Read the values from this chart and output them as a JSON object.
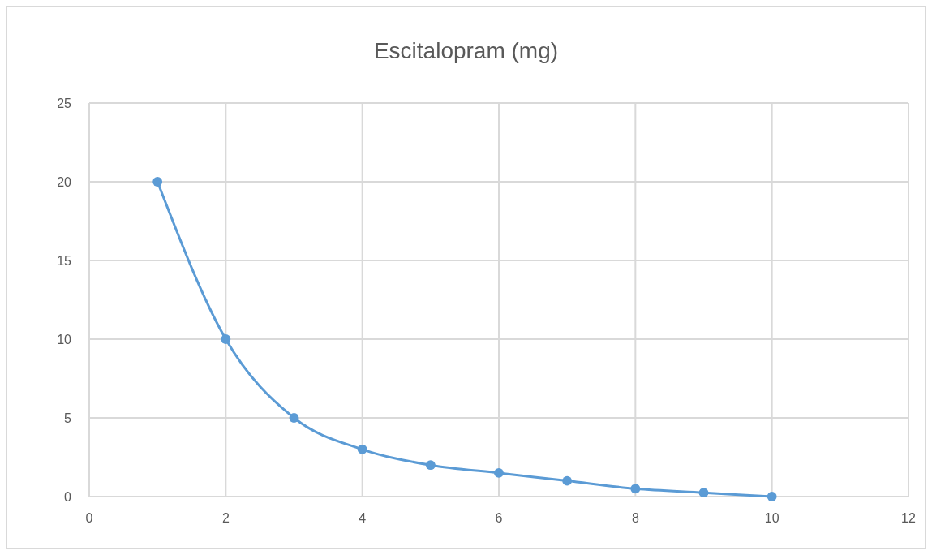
{
  "chart_data": {
    "type": "line",
    "title": "Escitalopram (mg)",
    "x": [
      1,
      2,
      3,
      4,
      5,
      6,
      7,
      8,
      9,
      10
    ],
    "series": [
      {
        "color": "#5b9bd5",
        "values": [
          20,
          10,
          5,
          3,
          2,
          1.5,
          1,
          0.5,
          0.25,
          0
        ]
      }
    ],
    "xlim": [
      0,
      12
    ],
    "xticks": [
      0,
      2,
      4,
      6,
      8,
      10,
      12
    ],
    "ylim": [
      0,
      25
    ],
    "yticks": [
      0,
      5,
      10,
      15,
      20,
      25
    ],
    "grid": true,
    "marker": "circle",
    "line_style": "solid"
  }
}
